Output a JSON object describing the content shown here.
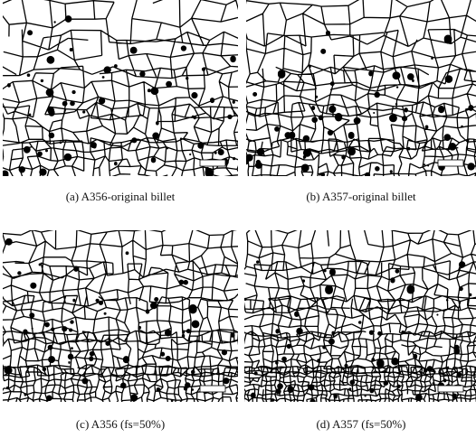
{
  "panels": [
    {
      "caption": "(a) A356-original billet"
    },
    {
      "caption": "(b) A357-original billet"
    },
    {
      "caption": "(c) A356 (fs=50%)"
    },
    {
      "caption": "(d) A357 (fs=50%)"
    }
  ]
}
